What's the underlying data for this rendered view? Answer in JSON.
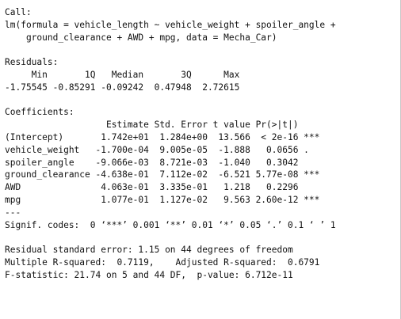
{
  "output": {
    "call_header": "Call:",
    "call_line1": "lm(formula = vehicle_length ~ vehicle_weight + spoiler_angle +",
    "call_line2": "    ground_clearance + AWD + mpg, data = Mecha_Car)",
    "residuals_header": "Residuals:",
    "residuals_labels": "     Min       1Q   Median       3Q      Max",
    "residuals_values": "-1.75545 -0.85291 -0.09242  0.47948  2.72615",
    "coef_header": "Coefficients:",
    "coef_columns": "                   Estimate Std. Error t value Pr(>|t|)",
    "coef_rows": [
      "(Intercept)       1.742e+01  1.284e+00  13.566  < 2e-16 ***",
      "vehicle_weight   -1.700e-04  9.005e-05  -1.888   0.0656 .",
      "spoiler_angle    -9.066e-03  8.721e-03  -1.040   0.3042",
      "ground_clearance -4.638e-01  7.112e-02  -6.521 5.77e-08 ***",
      "AWD               4.063e-01  3.335e-01   1.218   0.2296",
      "mpg               1.077e-01  1.127e-02   9.563 2.60e-12 ***"
    ],
    "separator": "---",
    "signif_codes": "Signif. codes:  0 ‘***’ 0.001 ‘**’ 0.01 ‘*’ 0.05 ‘.’ 0.1 ‘ ’ 1",
    "residual_se": "Residual standard error: 1.15 on 44 degrees of freedom",
    "r_squared": "Multiple R-squared:  0.7119,    Adjusted R-squared:  0.6791",
    "f_statistic": "F-statistic: 21.74 on 5 and 44 DF,  p-value: 6.712e-11"
  }
}
